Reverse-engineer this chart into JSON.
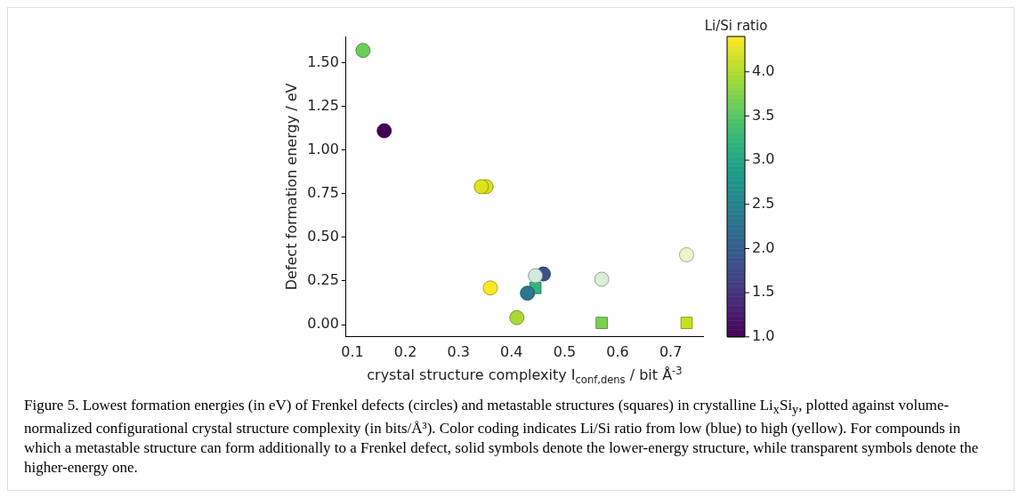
{
  "chart_data": {
    "type": "scatter",
    "xlabel": "crystal structure complexity I$_{conf,dens}$ / bit Å$^{-3}$",
    "ylabel": "Defect formation energy / eV",
    "clabel": "Li/Si ratio",
    "clim": [
      1.0,
      4.4
    ],
    "cticks": [
      {
        "value": 1,
        "label": "1.0"
      },
      {
        "value": 1.5,
        "label": "1.5"
      },
      {
        "value": 2,
        "label": "2.0"
      },
      {
        "value": 2.5,
        "label": "2.5"
      },
      {
        "value": 3,
        "label": "3.0"
      },
      {
        "value": 3.5,
        "label": "3.5"
      },
      {
        "value": 4,
        "label": "4.0"
      }
    ],
    "xlim": [
      0.088,
      0.761
    ],
    "ylim": [
      -0.07,
      1.65
    ],
    "xticks": [
      0.1,
      0.2,
      0.3,
      0.4,
      0.5,
      0.6,
      0.7
    ],
    "yticks": [
      {
        "value": 0,
        "label": "0.00"
      },
      {
        "value": 0.25,
        "label": "0.25"
      },
      {
        "value": 0.5,
        "label": "0.50"
      },
      {
        "value": 0.75,
        "label": "0.75"
      },
      {
        "value": 1,
        "label": "1.00"
      },
      {
        "value": 1.25,
        "label": "1.25"
      },
      {
        "value": 1.5,
        "label": "1.50"
      }
    ],
    "grid": false,
    "legend": false,
    "series": [
      {
        "marker": "circle",
        "x": [
          0.445,
          0.57,
          0.73
        ],
        "values": [
          0.28,
          0.26,
          0.4
        ],
        "colors": [
          "#d2ebe0",
          "#dcefd6",
          "#eef3c8"
        ]
      },
      {
        "marker": "circle",
        "x": [
          0.12,
          0.16,
          0.352,
          0.343,
          0.36,
          0.41,
          0.43,
          0.46
        ],
        "values": [
          1.57,
          1.11,
          0.79,
          0.79,
          0.21,
          0.04,
          0.18,
          0.29
        ],
        "colors": [
          "#6ccd5a",
          "#440154",
          "#d8e219",
          "#dde318",
          "#fde725",
          "#a8db34",
          "#2a788e",
          "#3b518b"
        ]
      },
      {
        "marker": "square",
        "x": [
          0.445,
          0.57,
          0.73
        ],
        "values": [
          0.21,
          0.01,
          0.01
        ],
        "colors": [
          "#2fb47c",
          "#7ad151",
          "#c8e020"
        ]
      }
    ],
    "annotations": [
      "Figure 5. Lowest formation energies (in eV) of Frenkel defects (circles) and metastable structures (squares) in crystalline Li$_{x}$Si$_{y}$, plotted against volume-normalized configurational crystal structure complexity (in bits/Å³). Color coding indicates Li/Si ratio from low (blue) to high (yellow). For compounds in which a metastable structure can form additionally to a Frenkel defect, solid symbols denote the lower-energy structure, while transparent symbols denote the higher-energy one."
    ]
  }
}
